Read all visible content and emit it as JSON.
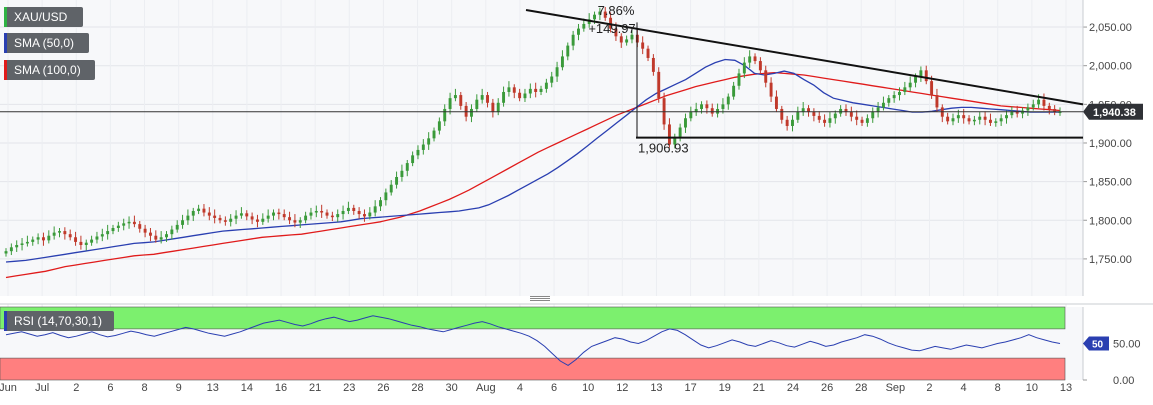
{
  "chart_data": {
    "type": "candlestick",
    "symbol": "XAU/USD",
    "last_price": "1,940.38",
    "price_axis": {
      "ticks": [
        "2,050.00",
        "2,000.00",
        "1,950.00",
        "1,900.00",
        "1,850.00",
        "1,800.00",
        "1,750.00"
      ],
      "range": [
        1702,
        2085
      ]
    },
    "x_axis": {
      "tick_labels": [
        "Jun",
        "Jul",
        "2",
        "6",
        "8",
        "9",
        "13",
        "14",
        "16",
        "21",
        "23",
        "26",
        "28",
        "30",
        "Aug",
        "4",
        "6",
        "10",
        "12",
        "13",
        "17",
        "19",
        "21",
        "24",
        "26",
        "28",
        "Sep",
        "2",
        "4",
        "8",
        "10",
        "13"
      ]
    },
    "indicators": [
      {
        "name": "SMA (50,0)",
        "color": "#2a3fb1"
      },
      {
        "name": "SMA (100,0)",
        "color": "#e01b1b"
      }
    ],
    "annotations": {
      "percent_change": "7.86%",
      "point_change": "+149.97",
      "support_label": "1,906.93",
      "support_level": 1906.93,
      "resistance_line": {
        "start": 2072,
        "end": 1950
      }
    },
    "series_close": [
      1760,
      1765,
      1768,
      1770,
      1772,
      1775,
      1778,
      1774,
      1780,
      1784,
      1786,
      1782,
      1778,
      1772,
      1768,
      1771,
      1775,
      1779,
      1782,
      1786,
      1790,
      1793,
      1796,
      1798,
      1795,
      1789,
      1784,
      1780,
      1775,
      1778,
      1782,
      1788,
      1794,
      1800,
      1806,
      1812,
      1815,
      1810,
      1806,
      1803,
      1800,
      1798,
      1802,
      1806,
      1809,
      1805,
      1801,
      1798,
      1802,
      1806,
      1810,
      1808,
      1804,
      1800,
      1797,
      1800,
      1806,
      1810,
      1812,
      1810,
      1806,
      1804,
      1808,
      1812,
      1816,
      1812,
      1808,
      1805,
      1810,
      1818,
      1826,
      1836,
      1846,
      1856,
      1864,
      1874,
      1884,
      1891,
      1898,
      1906,
      1916,
      1928,
      1944,
      1958,
      1962,
      1948,
      1934,
      1944,
      1956,
      1962,
      1952,
      1940,
      1952,
      1966,
      1972,
      1965,
      1958,
      1964,
      1970,
      1966,
      1970,
      1978,
      1986,
      1998,
      2012,
      2026,
      2040,
      2048,
      2054,
      2060,
      2066,
      2070,
      2062,
      2048,
      2038,
      2030,
      2034,
      2040,
      2030,
      2022,
      2010,
      1992,
      1958,
      1924,
      1898,
      1908,
      1920,
      1932,
      1940,
      1944,
      1950,
      1945,
      1938,
      1944,
      1950,
      1960,
      1974,
      1990,
      2004,
      2012,
      2006,
      1994,
      1978,
      1960,
      1944,
      1930,
      1922,
      1930,
      1940,
      1945,
      1940,
      1935,
      1930,
      1926,
      1932,
      1938,
      1944,
      1940,
      1934,
      1930,
      1926,
      1932,
      1940,
      1946,
      1952,
      1958,
      1962,
      1966,
      1972,
      1978,
      1986,
      1994,
      1980,
      1962,
      1946,
      1934,
      1928,
      1932,
      1936,
      1932,
      1928,
      1930,
      1934,
      1930,
      1926,
      1928,
      1932,
      1936,
      1940,
      1938,
      1942,
      1946,
      1950,
      1956,
      1948,
      1944,
      1940,
      1940
    ],
    "series_sma50": [
      1746,
      1747,
      1748,
      1750,
      1752,
      1754,
      1756,
      1758,
      1760,
      1762,
      1764,
      1766,
      1768,
      1770,
      1771,
      1772,
      1774,
      1776,
      1778,
      1780,
      1782,
      1784,
      1786,
      1787,
      1788,
      1789,
      1790,
      1791,
      1792,
      1793,
      1794,
      1795,
      1796,
      1797,
      1798,
      1800,
      1802,
      1803,
      1804,
      1805,
      1806,
      1807,
      1808,
      1809,
      1810,
      1811,
      1812,
      1814,
      1816,
      1820,
      1826,
      1832,
      1839,
      1846,
      1853,
      1860,
      1868,
      1877,
      1886,
      1896,
      1906,
      1916,
      1926,
      1936,
      1946,
      1956,
      1964,
      1970,
      1976,
      1982,
      1990,
      1998,
      2004,
      2008,
      2007,
      2000,
      1990,
      1988,
      1990,
      1993,
      1990,
      1982,
      1975,
      1965,
      1958,
      1955,
      1952,
      1950,
      1948,
      1946,
      1944,
      1942,
      1940,
      1940,
      1941,
      1943,
      1945,
      1946,
      1946,
      1945,
      1944,
      1943,
      1942,
      1941,
      1940,
      1940,
      1940,
      1940
    ],
    "series_sma100": [
      1726,
      1728,
      1730,
      1732,
      1734,
      1737,
      1740,
      1742,
      1744,
      1746,
      1748,
      1750,
      1752,
      1754,
      1755,
      1756,
      1758,
      1760,
      1762,
      1764,
      1766,
      1768,
      1770,
      1772,
      1774,
      1776,
      1778,
      1779,
      1780,
      1781,
      1782,
      1784,
      1786,
      1788,
      1790,
      1792,
      1794,
      1796,
      1798,
      1801,
      1804,
      1808,
      1812,
      1817,
      1822,
      1827,
      1833,
      1839,
      1846,
      1853,
      1860,
      1867,
      1874,
      1881,
      1888,
      1894,
      1900,
      1906,
      1912,
      1918,
      1924,
      1930,
      1936,
      1941,
      1946,
      1951,
      1956,
      1961,
      1965,
      1969,
      1973,
      1976,
      1979,
      1982,
      1985,
      1987,
      1989,
      1990,
      1991,
      1990,
      1989,
      1988,
      1986,
      1984,
      1982,
      1980,
      1978,
      1976,
      1974,
      1972,
      1970,
      1968,
      1966,
      1964,
      1962,
      1960,
      1958,
      1956,
      1954,
      1952,
      1950,
      1948,
      1947,
      1946,
      1945,
      1944,
      1943,
      1942
    ],
    "rsi": {
      "label": "RSI (14,70,30,1)",
      "last_value": "50",
      "upper": 70,
      "lower": 30,
      "ticks": [
        "50.00",
        "0.00"
      ],
      "values": [
        62,
        64,
        66,
        63,
        60,
        62,
        65,
        61,
        58,
        60,
        63,
        66,
        62,
        59,
        61,
        64,
        67,
        65,
        62,
        60,
        63,
        66,
        69,
        72,
        70,
        67,
        64,
        62,
        60,
        63,
        66,
        70,
        74,
        78,
        80,
        82,
        79,
        76,
        74,
        77,
        81,
        84,
        86,
        83,
        80,
        82,
        85,
        88,
        86,
        84,
        81,
        78,
        75,
        73,
        70,
        68,
        66,
        69,
        72,
        75,
        78,
        80,
        77,
        73,
        70,
        67,
        64,
        60,
        54,
        46,
        36,
        26,
        20,
        28,
        38,
        46,
        50,
        54,
        58,
        56,
        52,
        50,
        54,
        60,
        66,
        70,
        68,
        62,
        55,
        48,
        44,
        47,
        51,
        55,
        52,
        48,
        46,
        50,
        54,
        51,
        47,
        45,
        49,
        53,
        50,
        46,
        48,
        52,
        55,
        58,
        62,
        60,
        56,
        51,
        47,
        44,
        41,
        40,
        43,
        46,
        44,
        42,
        45,
        48,
        46,
        44,
        47,
        50,
        52,
        55,
        58,
        62,
        58,
        55,
        52,
        50
      ]
    }
  }
}
